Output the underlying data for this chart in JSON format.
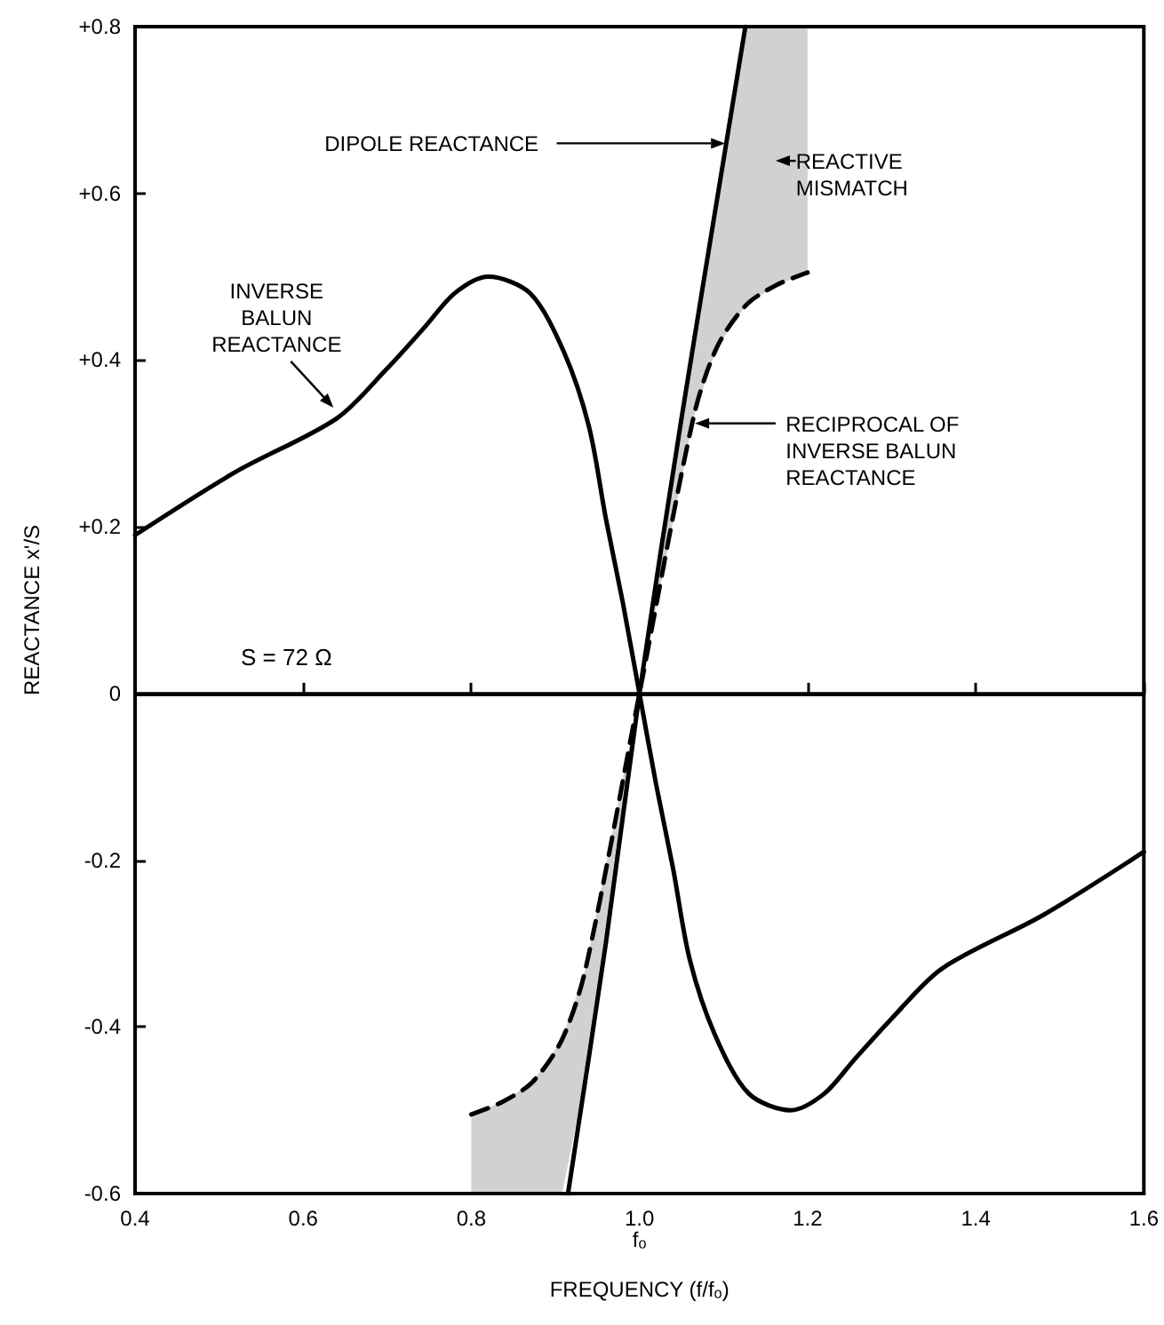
{
  "chart_data": {
    "type": "line",
    "xlabel": "FREQUENCY (f/fₒ)",
    "ylabel": "REACTANCE x'/S",
    "xlim": [
      0.4,
      1.6
    ],
    "xticks": [
      0.4,
      0.6,
      0.8,
      {
        "value": 1.0,
        "label": "1.0\nfₒ"
      },
      1.2,
      1.4,
      1.6
    ],
    "ylim": [
      -0.6,
      0.8
    ],
    "yticks": [
      {
        "value": -0.6,
        "label": "-0.6"
      },
      {
        "value": -0.4,
        "label": "-0.4"
      },
      {
        "value": -0.2,
        "label": "-0.2"
      },
      0,
      {
        "value": 0.2,
        "label": "+0.2"
      },
      {
        "value": 0.4,
        "label": "+0.4"
      },
      {
        "value": 0.6,
        "label": "+0.6"
      },
      {
        "value": 0.8,
        "label": "+0.8"
      }
    ],
    "grid": false,
    "marker": "none",
    "series": [
      {
        "color": "#000000",
        "line_style": "solid",
        "x": [
          0.4,
          0.52,
          0.64,
          0.7,
          0.745,
          0.78,
          0.82,
          0.87,
          0.91,
          0.94,
          0.96,
          0.98,
          1.0,
          1.02,
          1.04,
          1.06,
          1.09,
          1.13,
          1.18,
          1.22,
          1.255,
          1.3,
          1.36,
          1.48,
          1.6
        ],
        "values": [
          0.19,
          0.266,
          0.33,
          0.39,
          0.44,
          0.48,
          0.5,
          0.48,
          0.41,
          0.32,
          0.21,
          0.11,
          0,
          -0.11,
          -0.21,
          -0.32,
          -0.41,
          -0.48,
          -0.5,
          -0.48,
          -0.44,
          -0.39,
          -0.33,
          -0.266,
          -0.19
        ]
      },
      {
        "color": "#000000",
        "line_style": "solid",
        "x": [
          0.915,
          0.96,
          1.0,
          1.05,
          1.1,
          1.126
        ],
        "values": [
          -0.6,
          -0.3,
          0,
          0.33,
          0.64,
          0.8
        ]
      },
      {
        "color": "#000000",
        "line_style": "dashed",
        "x": [
          0.8,
          0.837,
          0.873,
          0.908,
          0.936,
          1.0,
          1.064,
          1.092,
          1.127,
          1.163,
          1.2
        ],
        "values": [
          -0.505,
          -0.49,
          -0.466,
          -0.415,
          -0.33,
          0,
          0.33,
          0.415,
          0.466,
          0.49,
          0.505
        ],
        "lower": [
          -0.6,
          -0.6,
          -0.6,
          -0.6,
          -0.46,
          0,
          0.33,
          0.415,
          0.466,
          0.49,
          0.505
        ],
        "upper": [
          -0.505,
          -0.49,
          -0.466,
          -0.415,
          -0.33,
          0,
          0.42,
          0.6,
          0.8,
          0.8,
          0.8
        ]
      }
    ],
    "ref_lines": [
      {
        "axis": "y",
        "value": 0,
        "color": "#000000"
      }
    ],
    "annotations": [
      {
        "text": "INVERSE\nBALUN\nREACTANCE",
        "x": 0.636,
        "y": 0.343
      },
      "DIPOLE REACTANCE",
      "REACTIVE\nMISMATCH",
      "RECIPROCAL OF\nINVERSE BALUN\nREACTANCE",
      "S = 72 Ω"
    ]
  }
}
